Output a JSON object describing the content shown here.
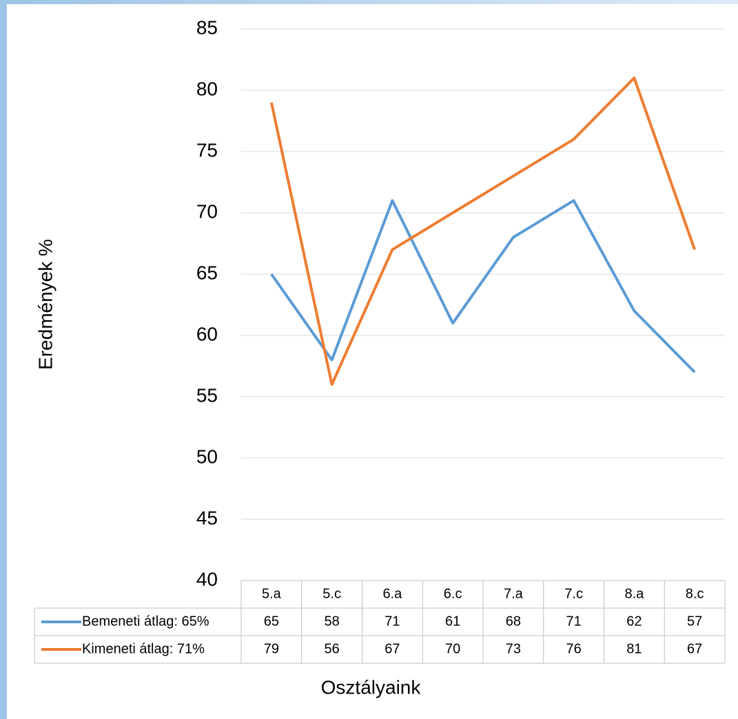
{
  "chart_data": {
    "type": "line",
    "x_label": "Osztályaink",
    "y_label": "Eredmények %",
    "categories": [
      "5.a",
      "5.c",
      "6.a",
      "6.c",
      "7.a",
      "7.c",
      "8.a",
      "8.c"
    ],
    "series": [
      {
        "name": "Bemeneti átlag: 65%",
        "color": "#5b9bd5",
        "values": [
          65,
          58,
          71,
          61,
          68,
          71,
          62,
          57
        ]
      },
      {
        "name": "Kimeneti átlag: 71%",
        "color": "#ed7d31",
        "values": [
          79,
          56,
          67,
          70,
          73,
          76,
          81,
          67
        ]
      }
    ],
    "ylim": [
      40,
      85
    ],
    "yticks": [
      40,
      45,
      50,
      55,
      60,
      65,
      70,
      75,
      80,
      85
    ],
    "grid": true
  }
}
